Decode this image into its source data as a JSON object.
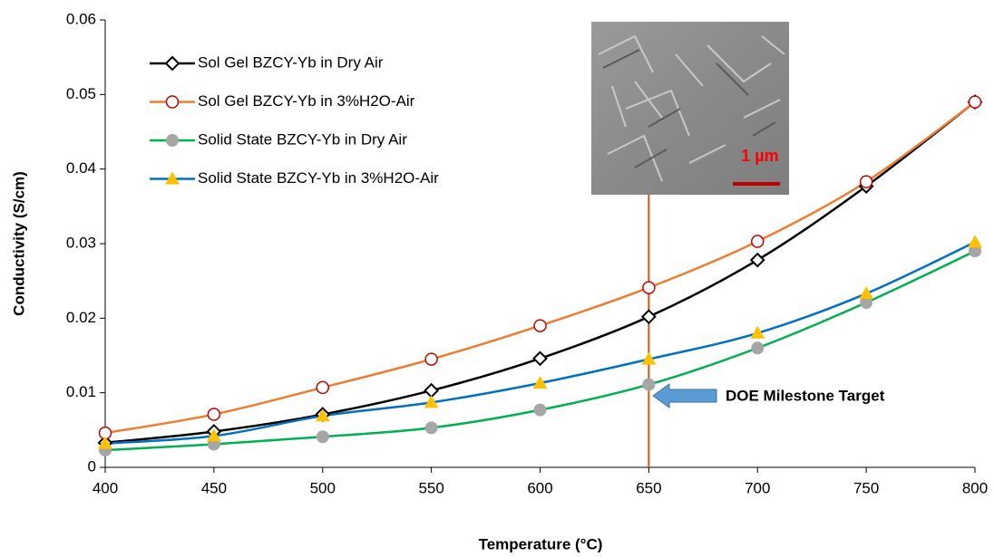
{
  "chart_data": {
    "type": "line",
    "x_label": "Temperature (°C)",
    "y_label": "Conductivity (S/cm)",
    "x": [
      400,
      450,
      500,
      550,
      600,
      650,
      700,
      750,
      800
    ],
    "xlim": [
      400,
      800
    ],
    "xticks": [
      400,
      450,
      500,
      550,
      600,
      650,
      700,
      750,
      800
    ],
    "ylim": [
      0,
      0.06
    ],
    "yticks": [
      0,
      0.01,
      0.02,
      0.03,
      0.04,
      0.05,
      0.06
    ],
    "grid": false,
    "legend": "upper-left",
    "series": [
      {
        "name": "Sol Gel BZCY-Yb in Dry Air",
        "color": "#000000",
        "marker": "diamond",
        "marker_color": "#000000",
        "values": [
          0.0033,
          0.0048,
          0.0071,
          0.0103,
          0.0146,
          0.0202,
          0.0278,
          0.0377,
          0.049
        ]
      },
      {
        "name": "Sol Gel BZCY-Yb in 3%H2O-Air",
        "color": "#ed7d31",
        "marker": "open-circle",
        "marker_color": "#c00000",
        "values": [
          0.0046,
          0.0071,
          0.0107,
          0.0145,
          0.019,
          0.0241,
          0.0303,
          0.0383,
          0.049
        ]
      },
      {
        "name": "Solid State BZCY-Yb in Dry Air",
        "color": "#00b050",
        "marker": "circle",
        "marker_color": "#a6a6a6",
        "values": [
          0.0023,
          0.0031,
          0.0041,
          0.0053,
          0.0077,
          0.0111,
          0.016,
          0.0221,
          0.029
        ]
      },
      {
        "name": "Solid State BZCY-Yb in 3%H2O-Air",
        "color": "#0070c0",
        "marker": "triangle",
        "marker_color": "#ffc000",
        "values": [
          0.0032,
          0.0042,
          0.0069,
          0.0087,
          0.0113,
          0.0145,
          0.018,
          0.0233,
          0.0302
        ]
      }
    ],
    "reference_line_x": 650,
    "reference_line_color": "#c55a11",
    "annotation": "DOE Milestone Target",
    "inset_scale_label": "1 µm"
  }
}
